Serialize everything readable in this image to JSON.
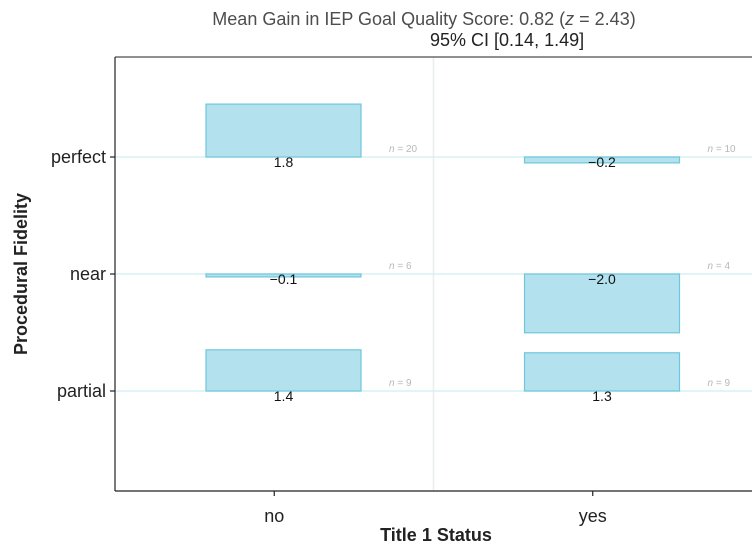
{
  "title": {
    "prefix": "Mean Gain in IEP Goal Quality Score: 0.82 (",
    "z_symbol": "z",
    "suffix": " = 2.43)",
    "ci": "95% CI [0.14, 1.49]"
  },
  "colors": {
    "bar_fill": "#b3e1ee",
    "bar_stroke": "#6ec7dc",
    "zero_line": "#d7f0f3",
    "divider": "#e8eeee"
  },
  "chart_data": {
    "type": "bar",
    "xlabel": "Title 1 Status",
    "ylabel": "Procedural Fidelity",
    "panels": [
      "no",
      "yes"
    ],
    "rows": [
      "perfect",
      "near",
      "partial"
    ],
    "grid": false,
    "value_range": [
      -3.0,
      3.0
    ],
    "bars": [
      {
        "panel": "no",
        "row": "perfect",
        "value": 1.8,
        "label": "1.8",
        "n": "n = 20"
      },
      {
        "panel": "no",
        "row": "near",
        "value": -0.1,
        "label": "−0.1",
        "n": "n = 6"
      },
      {
        "panel": "no",
        "row": "partial",
        "value": 1.4,
        "label": "1.4",
        "n": "n = 9"
      },
      {
        "panel": "yes",
        "row": "perfect",
        "value": -0.2,
        "label": "−0.2",
        "n": "n = 10"
      },
      {
        "panel": "yes",
        "row": "near",
        "value": -2.0,
        "label": "−2.0",
        "n": "n = 4"
      },
      {
        "panel": "yes",
        "row": "partial",
        "value": 1.3,
        "label": "1.3",
        "n": "n = 9"
      }
    ]
  }
}
